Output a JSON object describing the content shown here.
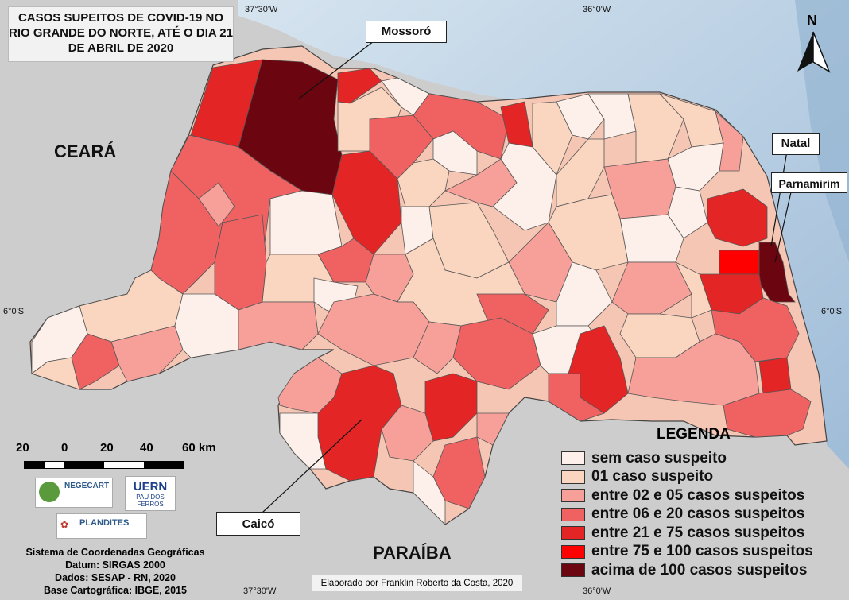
{
  "title": "CASOS SUPEITOS DE COVID-19 NO RIO GRANDE DO NORTE, ATÉ O DIA 21 DE ABRIL DE 2020",
  "north_label": "N",
  "coords": {
    "top_left": "37°30'W",
    "top_right": "36°0'W",
    "bottom_left": "37°30'W",
    "bottom_right": "36°0'W",
    "left_lat": "6°0'S",
    "right_lat": "6°0'S"
  },
  "states": {
    "ceara": "CEARÁ",
    "paraiba": "PARAÍBA"
  },
  "cities": {
    "mossoro": "Mossoró",
    "natal": "Natal",
    "parnamirim": "Parnamirim",
    "caico": "Caicó"
  },
  "legend": {
    "title": "LEGENDA",
    "items": [
      {
        "label": "sem caso suspeito",
        "color": "#fdf0ea"
      },
      {
        "label": "01 caso suspeito",
        "color": "#fad5c0"
      },
      {
        "label": "entre 02 e 05 casos suspeitos",
        "color": "#f7a09a"
      },
      {
        "label": "entre 06 e 20 casos suspeitos",
        "color": "#f06262"
      },
      {
        "label": "entre 21 e 75 casos suspeitos",
        "color": "#e32525"
      },
      {
        "label": "entre 75 e 100 casos suspeitos",
        "color": "#ff0000"
      },
      {
        "label": "acima de 100 casos suspeitos",
        "color": "#6b050f"
      }
    ]
  },
  "scale": {
    "labels": [
      "20",
      "0",
      "20",
      "40",
      "60 km"
    ]
  },
  "logos": {
    "negecart": "NEGECART",
    "uern": "UERN",
    "uern_sub": "PAU DOS FERROS",
    "plandites": "PLANDITES"
  },
  "info": {
    "line1": "Sistema de Coordenadas Geográficas",
    "line2": "Datum: SIRGAS 2000",
    "line3": "Dados: SESAP - RN, 2020",
    "line4": "Base Cartográfica: IBGE, 2015"
  },
  "credit": "Elaborado por Franklin Roberto da Costa, 2020",
  "colors": {
    "sea": "#b4cde4",
    "land": "#cdcdcd"
  }
}
